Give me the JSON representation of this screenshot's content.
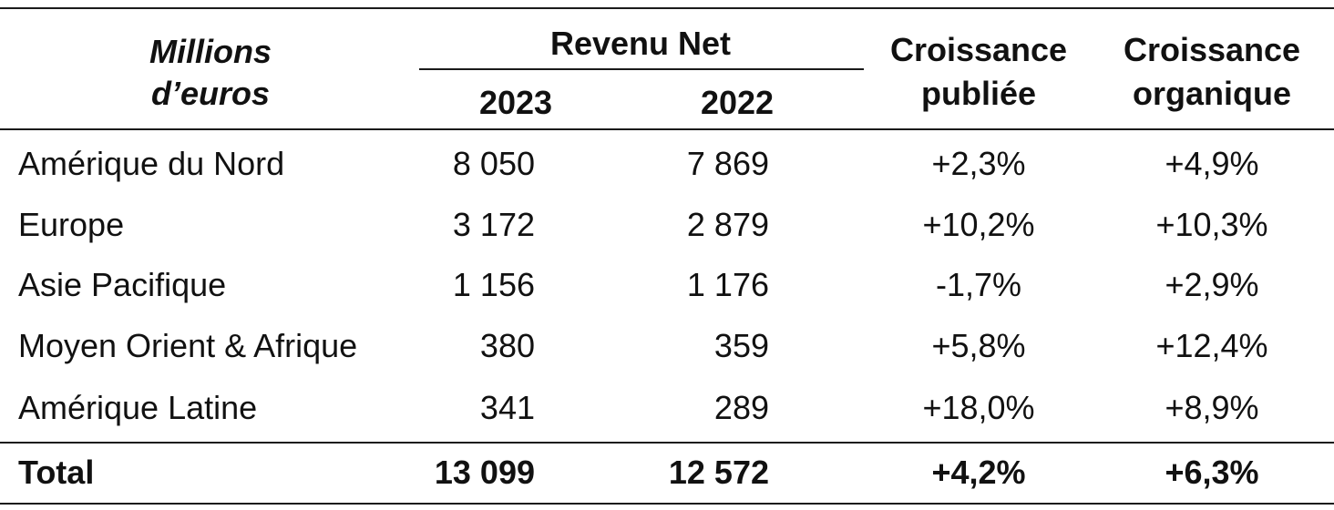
{
  "header": {
    "unit_line1": "Millions",
    "unit_line2": "d’euros",
    "revenue_group": "Revenu Net",
    "year_current": "2023",
    "year_prior": "2022",
    "reported_growth_line1": "Croissance",
    "reported_growth_line2": "publiée",
    "organic_growth_line1": "Croissance",
    "organic_growth_line2": "organique"
  },
  "rows": [
    {
      "region": "Amérique du Nord",
      "rev_2023": "8 050",
      "rev_2022": "7 869",
      "reported": "+2,3%",
      "organic": "+4,9%"
    },
    {
      "region": "Europe",
      "rev_2023": "3 172",
      "rev_2022": "2 879",
      "reported": "+10,2%",
      "organic": "+10,3%"
    },
    {
      "region": "Asie Pacifique",
      "rev_2023": "1 156",
      "rev_2022": "1 176",
      "reported": "-1,7%",
      "organic": "+2,9%"
    },
    {
      "region": "Moyen Orient & Afrique",
      "rev_2023": "380",
      "rev_2022": "359",
      "reported": "+5,8%",
      "organic": "+12,4%"
    },
    {
      "region": "Amérique Latine",
      "rev_2023": "341",
      "rev_2022": "289",
      "reported": "+18,0%",
      "organic": "+8,9%"
    }
  ],
  "total": {
    "label": "Total",
    "rev_2023": "13 099",
    "rev_2022": "12 572",
    "reported": "+4,2%",
    "organic": "+6,3%"
  }
}
